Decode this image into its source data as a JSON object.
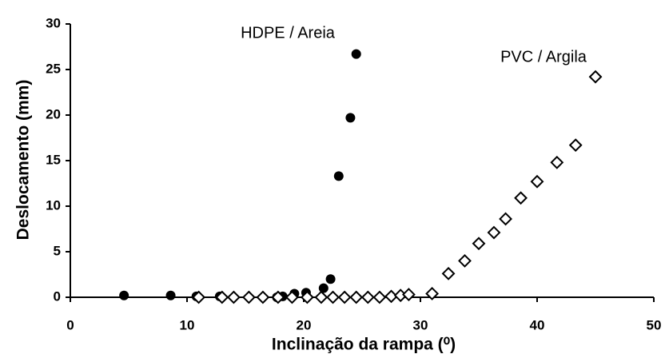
{
  "chart_data": {
    "type": "scatter",
    "xlabel": "Inclinação da rampa (⁰)",
    "ylabel": "Deslocamento (mm)",
    "annotations": [
      "HDPE / Areia",
      "PVC / Argila"
    ],
    "xlim": [
      0,
      50
    ],
    "xticks": [
      0,
      10,
      20,
      30,
      40,
      50
    ],
    "ylim": [
      0,
      30
    ],
    "yticks": [
      0,
      5,
      10,
      15,
      20,
      25,
      30
    ],
    "grid": false,
    "series": [
      {
        "name": "HDPE / Areia",
        "marker": "circle",
        "color": "#000000",
        "x": [
          4.6,
          8.6,
          10.8,
          12.8,
          17.7,
          18.2,
          19.2,
          20.2,
          21.7,
          22.3,
          23.0,
          24.0,
          24.5
        ],
        "values": [
          0.2,
          0.2,
          0.1,
          0.1,
          0,
          0.1,
          0.4,
          0.5,
          1.0,
          2.0,
          13.3,
          19.7,
          26.7
        ]
      },
      {
        "name": "PVC / Argila",
        "marker": "diamond",
        "color": "#000000",
        "x": [
          11,
          13,
          14,
          15.3,
          16.5,
          17.8,
          19,
          20.3,
          21.5,
          22.5,
          23.5,
          24.5,
          25.5,
          26.5,
          27.5,
          28.3,
          29,
          31,
          32.4,
          33.8,
          35,
          36.3,
          37.3,
          38.6,
          40,
          41.7,
          43.3,
          45
        ],
        "values": [
          0,
          0,
          0,
          0,
          0,
          0,
          0,
          0,
          0,
          0,
          0,
          0,
          0,
          0,
          0.1,
          0.2,
          0.3,
          0.4,
          2.6,
          4.0,
          5.9,
          7.1,
          8.6,
          10.9,
          12.7,
          14.8,
          16.7,
          24.2
        ]
      }
    ]
  }
}
